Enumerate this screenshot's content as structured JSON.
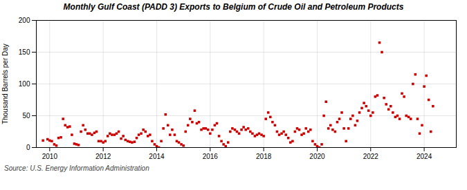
{
  "chart_data": {
    "type": "scatter",
    "title": "Monthly Gulf Coast (PADD 3) Exports to Belgium of Crude Oil and Petroleum Products",
    "ylabel": "Thousand Barrels per Day",
    "annotations": [
      "Source: U.S. Energy Information Administration"
    ],
    "color": "#cc0000",
    "marker": "square",
    "grid": true,
    "xlim": [
      2009.5,
      2025.2
    ],
    "xticks": [
      2010,
      2012,
      2014,
      2016,
      2018,
      2020,
      2022,
      2024
    ],
    "ylim": [
      0,
      200
    ],
    "yticks": [
      0,
      50,
      100,
      150,
      200
    ],
    "x": [
      2009.75,
      2009.92,
      2010.0,
      2010.08,
      2010.17,
      2010.25,
      2010.33,
      2010.42,
      2010.5,
      2010.58,
      2010.67,
      2010.75,
      2010.83,
      2010.92,
      2011.0,
      2011.08,
      2011.17,
      2011.25,
      2011.33,
      2011.42,
      2011.5,
      2011.58,
      2011.67,
      2011.75,
      2011.83,
      2011.92,
      2012.0,
      2012.08,
      2012.17,
      2012.25,
      2012.33,
      2012.42,
      2012.5,
      2012.58,
      2012.67,
      2012.75,
      2012.83,
      2012.92,
      2013.0,
      2013.08,
      2013.17,
      2013.25,
      2013.33,
      2013.42,
      2013.5,
      2013.58,
      2013.67,
      2013.75,
      2013.83,
      2013.92,
      2014.0,
      2014.08,
      2014.17,
      2014.25,
      2014.33,
      2014.42,
      2014.5,
      2014.58,
      2014.67,
      2014.75,
      2014.83,
      2014.92,
      2015.0,
      2015.08,
      2015.17,
      2015.25,
      2015.33,
      2015.42,
      2015.5,
      2015.58,
      2015.67,
      2015.75,
      2015.83,
      2015.92,
      2016.0,
      2016.08,
      2016.17,
      2016.25,
      2016.33,
      2016.42,
      2016.5,
      2016.58,
      2016.67,
      2016.75,
      2016.83,
      2016.92,
      2017.0,
      2017.08,
      2017.17,
      2017.25,
      2017.33,
      2017.42,
      2017.5,
      2017.58,
      2017.67,
      2017.75,
      2017.83,
      2017.92,
      2018.0,
      2018.08,
      2018.17,
      2018.25,
      2018.33,
      2018.42,
      2018.5,
      2018.58,
      2018.67,
      2018.75,
      2018.83,
      2018.92,
      2019.0,
      2019.08,
      2019.17,
      2019.25,
      2019.33,
      2019.42,
      2019.5,
      2019.58,
      2019.67,
      2019.75,
      2019.83,
      2019.92,
      2020.0,
      2020.08,
      2020.17,
      2020.25,
      2020.33,
      2020.42,
      2020.5,
      2020.58,
      2020.67,
      2020.75,
      2020.83,
      2020.92,
      2021.0,
      2021.08,
      2021.17,
      2021.25,
      2021.33,
      2021.42,
      2021.5,
      2021.58,
      2021.67,
      2021.75,
      2021.83,
      2021.92,
      2022.0,
      2022.08,
      2022.17,
      2022.25,
      2022.33,
      2022.42,
      2022.5,
      2022.58,
      2022.67,
      2022.75,
      2022.83,
      2022.92,
      2023.0,
      2023.08,
      2023.17,
      2023.25,
      2023.33,
      2023.42,
      2023.5,
      2023.58,
      2023.67,
      2023.75,
      2023.83,
      2023.92,
      2024.0,
      2024.08,
      2024.17,
      2024.25,
      2024.33
    ],
    "values": [
      11,
      13,
      11,
      10,
      5,
      3,
      15,
      16,
      45,
      35,
      32,
      33,
      20,
      6,
      5,
      4,
      25,
      35,
      28,
      22,
      22,
      20,
      23,
      25,
      10,
      10,
      8,
      10,
      18,
      22,
      20,
      20,
      22,
      25,
      14,
      18,
      12,
      10,
      9,
      8,
      9,
      15,
      20,
      22,
      28,
      25,
      18,
      20,
      10,
      5,
      2,
      0,
      10,
      30,
      52,
      35,
      20,
      28,
      20,
      10,
      8,
      5,
      3,
      25,
      35,
      45,
      40,
      58,
      38,
      40,
      28,
      30,
      30,
      28,
      22,
      28,
      35,
      38,
      18,
      10,
      5,
      2,
      8,
      25,
      30,
      28,
      25,
      22,
      28,
      32,
      28,
      30,
      25,
      22,
      18,
      20,
      22,
      20,
      18,
      45,
      55,
      48,
      40,
      35,
      25,
      20,
      22,
      25,
      20,
      15,
      8,
      10,
      25,
      30,
      28,
      20,
      22,
      30,
      25,
      28,
      10,
      5,
      2,
      0,
      5,
      50,
      72,
      30,
      35,
      28,
      25,
      40,
      45,
      55,
      30,
      10,
      30,
      45,
      50,
      35,
      42,
      55,
      62,
      70,
      65,
      58,
      50,
      55,
      80,
      82,
      165,
      150,
      78,
      68,
      60,
      65,
      55,
      48,
      50,
      45,
      85,
      80,
      50,
      48,
      45,
      100,
      115,
      45,
      22,
      35,
      96,
      113,
      75,
      25,
      65
    ]
  }
}
